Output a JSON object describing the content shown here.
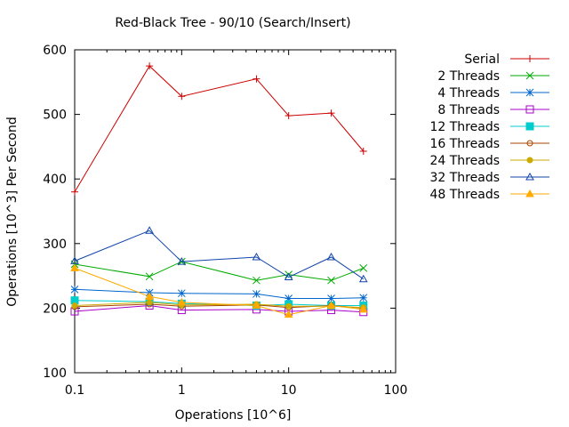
{
  "chart_data": {
    "type": "line",
    "title": "Red-Black Tree - 90/10 (Search/Insert)",
    "xlabel": "Operations [10^6]",
    "ylabel": "Operations [10^3] Per Second",
    "xscale": "log",
    "xlim": [
      0.1,
      100
    ],
    "ylim": [
      100,
      600
    ],
    "xticks": [
      0.1,
      1,
      10,
      100
    ],
    "xtick_labels": [
      "0.1",
      "1",
      "10",
      "100"
    ],
    "yticks": [
      100,
      200,
      300,
      400,
      500,
      600
    ],
    "ytick_labels": [
      "100",
      "200",
      "300",
      "400",
      "500",
      "600"
    ],
    "grid": false,
    "legend_position": "right",
    "x": [
      0.1,
      0.5,
      1,
      5,
      10,
      25,
      50
    ],
    "series": [
      {
        "name": "Serial",
        "color": "#cc0000",
        "marker": "plus",
        "values": [
          380,
          575,
          528,
          555,
          498,
          502,
          443
        ]
      },
      {
        "name": "2 Threads",
        "color": "#00aa00",
        "marker": "x",
        "values": [
          268,
          249,
          272,
          243,
          252,
          243,
          262
        ]
      },
      {
        "name": "4 Threads",
        "color": "#0066cc",
        "marker": "star",
        "values": [
          229,
          224,
          223,
          222,
          215,
          215,
          216
        ]
      },
      {
        "name": "8 Threads",
        "color": "#aa00cc",
        "marker": "square-open",
        "values": [
          195,
          204,
          197,
          198,
          195,
          197,
          194
        ]
      },
      {
        "name": "12 Threads",
        "color": "#00cccc",
        "marker": "square-filled",
        "values": [
          212,
          210,
          207,
          204,
          206,
          204,
          204
        ]
      },
      {
        "name": "16 Threads",
        "color": "#aa4400",
        "marker": "circle-open",
        "values": [
          202,
          206,
          203,
          205,
          201,
          204,
          200
        ]
      },
      {
        "name": "24 Threads",
        "color": "#ccaa00",
        "marker": "circle-filled",
        "values": [
          204,
          209,
          205,
          206,
          203,
          203,
          201
        ]
      },
      {
        "name": "32 Threads",
        "color": "#1144aa",
        "marker": "triangle-open",
        "values": [
          273,
          320,
          272,
          279,
          248,
          279,
          245
        ]
      },
      {
        "name": "48 Threads",
        "color": "#ffaa00",
        "marker": "triangle-filled",
        "values": [
          262,
          218,
          209,
          204,
          190,
          204,
          198
        ]
      }
    ]
  }
}
